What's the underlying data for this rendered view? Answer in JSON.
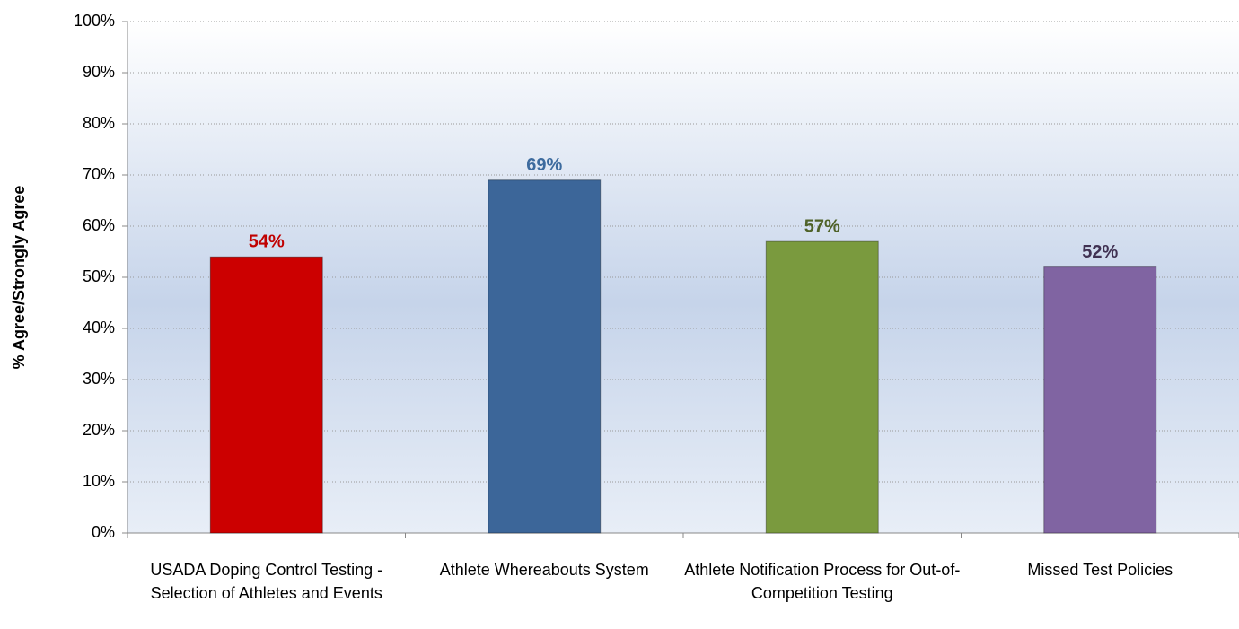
{
  "chart_data": {
    "type": "bar",
    "y_label": "% Agree/Strongly Agree",
    "categories": [
      "USADA Doping Control Testing - Selection of Athletes and Events",
      "Athlete Whereabouts System",
      "Athlete Notification Process for Out-of-Competition Testing",
      "Missed Test Policies"
    ],
    "values": [
      54,
      69,
      57,
      52
    ],
    "value_labels": [
      "54%",
      "69%",
      "57%",
      "52%"
    ],
    "colors": [
      "#cc0000",
      "#3c6699",
      "#7a9a3e",
      "#8064a2"
    ],
    "label_colors": [
      "#c00000",
      "#3d6b9e",
      "#4f6228",
      "#403152"
    ],
    "ylim": [
      0,
      100
    ],
    "yticks": [
      {
        "value": 0,
        "label": "0%"
      },
      {
        "value": 10,
        "label": "10%"
      },
      {
        "value": 20,
        "label": "20%"
      },
      {
        "value": 30,
        "label": "30%"
      },
      {
        "value": 40,
        "label": "40%"
      },
      {
        "value": 50,
        "label": "50%"
      },
      {
        "value": 60,
        "label": "60%"
      },
      {
        "value": 70,
        "label": "70%"
      },
      {
        "value": 80,
        "label": "80%"
      },
      {
        "value": 90,
        "label": "90%"
      },
      {
        "value": 100,
        "label": "100%"
      }
    ],
    "grid": true
  }
}
